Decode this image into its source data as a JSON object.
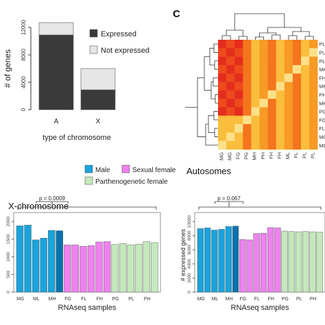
{
  "colors": {
    "expressed": "#3a3a3a",
    "not_expressed": "#e6e6e6",
    "male": "#1aa3dc",
    "male_dark": "#0c72ad",
    "sexual_female": "#ee82ee",
    "sexual_female_dark": "#c94fcf",
    "parthenogenetic_female": "#c4e8bc",
    "parthenogenetic_female_dark": "#8fc987"
  },
  "panel_c": {
    "label": "C"
  },
  "chart_data": [
    {
      "type": "bar",
      "stacked": true,
      "ylabel": "# of genes",
      "xlabel": "type of chromosome",
      "categories": [
        "A",
        "X"
      ],
      "ylim": [
        0,
        12000
      ],
      "yticks": [
        0,
        4000,
        8000,
        12000
      ],
      "series": [
        {
          "name": "Expressed",
          "values": [
            10900,
            2900
          ]
        },
        {
          "name": "Not expressed",
          "values": [
            1800,
            3100
          ]
        }
      ],
      "legend": "right"
    },
    {
      "type": "heatmap",
      "row_labels": [
        "PL",
        "PL",
        "PL",
        "MH",
        "FH",
        "MH",
        "PH",
        "MH",
        "PG",
        "FG",
        "FL",
        "MG",
        "MG"
      ],
      "col_labels": [
        "MG",
        "MG",
        "FG",
        "PG",
        "MH",
        "PH",
        "FH",
        "FH",
        "ML",
        "FL",
        "PL",
        "PL"
      ],
      "dendrograms": [
        "top",
        "left"
      ]
    },
    {
      "type": "bar",
      "title": "X-chromosome",
      "xlabel": "RNAseq samples",
      "categories": [
        "MG",
        "MG",
        "ML",
        "ML",
        "MH",
        "MH",
        "FG",
        "FG",
        "FL",
        "FL",
        "FH",
        "FH",
        "PG",
        "PG",
        "PL",
        "PL",
        "PH",
        "PH"
      ],
      "visible_tick_labels": [
        "MG",
        "ML",
        "MH",
        "FG",
        "FL",
        "FH",
        "PG",
        "PL",
        "PH"
      ],
      "values": [
        1880,
        1900,
        1480,
        1530,
        1750,
        1740,
        1340,
        1340,
        1300,
        1320,
        1420,
        1430,
        1350,
        1380,
        1340,
        1360,
        1430,
        1400
      ],
      "groups": [
        "Male",
        "Male",
        "Male",
        "Male",
        "Male",
        "Male",
        "Sexual female",
        "Sexual female",
        "Sexual female",
        "Sexual female",
        "Sexual female",
        "Sexual female",
        "Parthenogenetic female",
        "Parthenogenetic female",
        "Parthenogenetic female",
        "Parthenogenetic female",
        "Parthenogenetic female",
        "Parthenogenetic female"
      ],
      "ylim": [
        0,
        2100
      ],
      "yticks": [
        0,
        500,
        1000,
        1500,
        2000
      ],
      "bracket_label": "p = 0.0009",
      "legend": [
        "Male",
        "Sexual female",
        "Parthenogenetic female"
      ]
    },
    {
      "type": "bar",
      "title": "Autosomes",
      "xlabel": "RNAseq samples",
      "ylabel": "# expressed genes",
      "categories": [
        "MG",
        "MG",
        "ML",
        "ML",
        "MH",
        "MH",
        "FG",
        "FG",
        "FL",
        "FL",
        "FH",
        "FH",
        "PG",
        "PG",
        "PL",
        "PL",
        "PH",
        "PH"
      ],
      "visible_tick_labels": [
        "MG",
        "ML",
        "MH",
        "FG",
        "FL",
        "FH",
        "PG",
        "PL",
        "PH"
      ],
      "values": [
        9000,
        9100,
        8800,
        8900,
        9300,
        9350,
        7450,
        7400,
        8300,
        8350,
        9150,
        9100,
        8650,
        8600,
        8550,
        8600,
        8550,
        8500
      ],
      "groups": [
        "Male",
        "Male",
        "Male",
        "Male",
        "Male",
        "Male",
        "Sexual female",
        "Sexual female",
        "Sexual female",
        "Sexual female",
        "Sexual female",
        "Sexual female",
        "Parthenogenetic female",
        "Parthenogenetic female",
        "Parthenogenetic female",
        "Parthenogenetic female",
        "Parthenogenetic female",
        "Parthenogenetic female"
      ],
      "ylim": [
        0,
        10500
      ],
      "yticks": [
        0,
        2000,
        4000,
        6000,
        8000,
        10000
      ],
      "bracket_label": "p = 0.067"
    }
  ]
}
